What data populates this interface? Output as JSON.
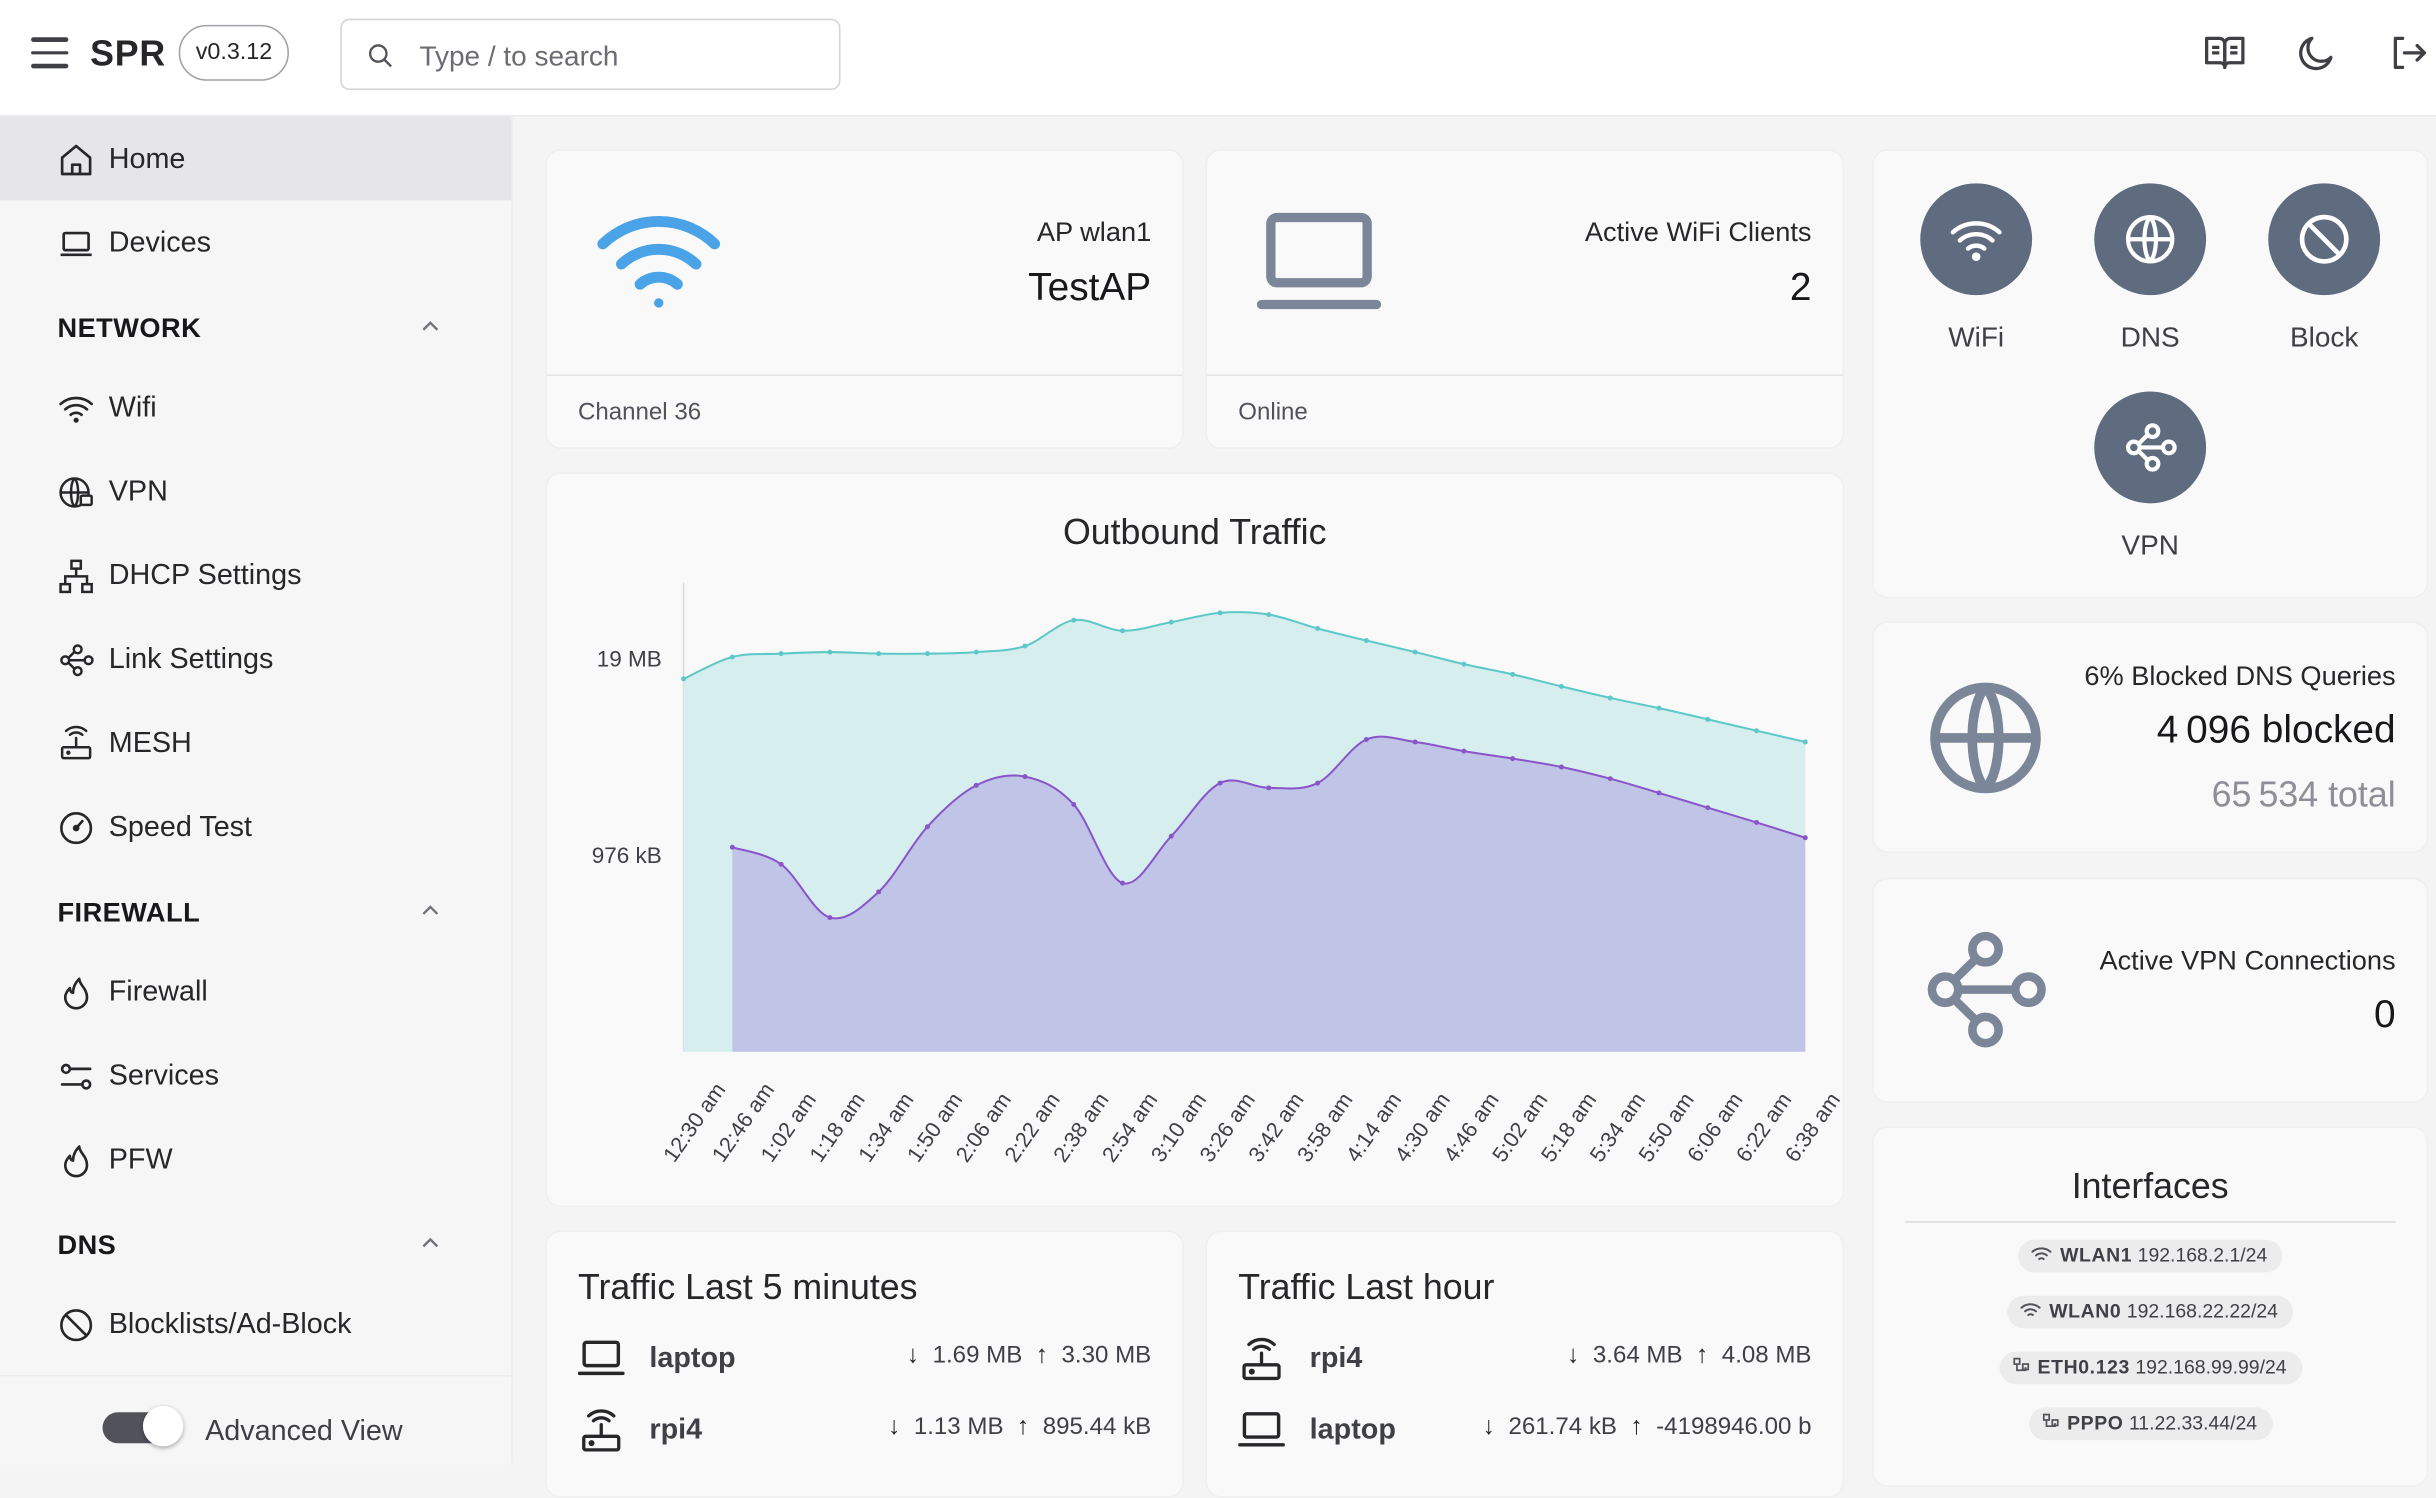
{
  "header": {
    "app_name": "SPR",
    "version": "v0.3.12",
    "search_placeholder": "Type / to search"
  },
  "sidebar": {
    "top_items": [
      {
        "label": "Home",
        "icon": "home-icon",
        "active": true
      },
      {
        "label": "Devices",
        "icon": "laptop-icon",
        "active": false
      }
    ],
    "sections": [
      {
        "title": "NETWORK",
        "items": [
          {
            "label": "Wifi",
            "icon": "wifi-icon"
          },
          {
            "label": "VPN",
            "icon": "globe-lock-icon"
          },
          {
            "label": "DHCP Settings",
            "icon": "sitemap-icon"
          },
          {
            "label": "Link Settings",
            "icon": "link-nodes-icon"
          },
          {
            "label": "MESH",
            "icon": "router-icon"
          },
          {
            "label": "Speed Test",
            "icon": "gauge-icon"
          }
        ]
      },
      {
        "title": "FIREWALL",
        "items": [
          {
            "label": "Firewall",
            "icon": "flame-icon"
          },
          {
            "label": "Services",
            "icon": "sliders-icon"
          },
          {
            "label": "PFW",
            "icon": "flame-icon"
          }
        ]
      },
      {
        "title": "DNS",
        "items": [
          {
            "label": "Blocklists/Ad-Block",
            "icon": "ban-icon"
          }
        ]
      }
    ],
    "advanced_view_label": "Advanced View",
    "advanced_view_on": true
  },
  "cards": {
    "ap": {
      "label": "AP wlan1",
      "value": "TestAP",
      "footer": "Channel 36"
    },
    "clients": {
      "label": "Active WiFi Clients",
      "value": "2",
      "footer": "Online"
    },
    "dns_blocked": {
      "label": "6% Blocked DNS Queries",
      "blocked": "4 096 blocked",
      "total": "65 534 total"
    },
    "vpn": {
      "label": "Active VPN Connections",
      "value": "0"
    }
  },
  "quick_links": [
    {
      "label": "WiFi",
      "icon": "wifi-icon"
    },
    {
      "label": "DNS",
      "icon": "globe-icon"
    },
    {
      "label": "Block",
      "icon": "ban-icon"
    },
    {
      "label": "VPN",
      "icon": "link-nodes-icon"
    }
  ],
  "chart_data": {
    "type": "area",
    "title": "Outbound Traffic",
    "xlabel": "",
    "ylabel": "",
    "x": [
      "12:30 am",
      "12:46 am",
      "1:02 am",
      "1:18 am",
      "1:34 am",
      "1:50 am",
      "2:06 am",
      "2:22 am",
      "2:38 am",
      "2:54 am",
      "3:10 am",
      "3:26 am",
      "3:42 am",
      "3:58 am",
      "4:14 am",
      "4:30 am",
      "4:46 am",
      "5:02 am",
      "5:18 am",
      "5:34 am",
      "5:50 am",
      "6:06 am",
      "6:22 am",
      "6:38 am"
    ],
    "y_ticks": [
      "19 MB",
      "976 kB"
    ],
    "scale": "log",
    "ylim_mb": [
      0.05,
      60
    ],
    "series": [
      {
        "color": "#5cc8c8",
        "values_mb": [
          14,
          19.5,
          20.5,
          21,
          20.5,
          20.5,
          21,
          23,
          34,
          29,
          33,
          38,
          37,
          30,
          25,
          21,
          17.5,
          15,
          12.5,
          10.5,
          9,
          7.6,
          6.4,
          5.4
        ]
      },
      {
        "color": "#8a55c8",
        "values_mb": [
          null,
          1.1,
          0.85,
          0.38,
          0.56,
          1.5,
          2.8,
          3.2,
          2.1,
          0.64,
          1.3,
          2.9,
          2.7,
          2.9,
          5.6,
          5.4,
          4.7,
          4.2,
          3.7,
          3.1,
          2.5,
          2.0,
          1.6,
          1.27
        ]
      }
    ]
  },
  "traffic_5min": {
    "title": "Traffic Last 5 minutes",
    "rows": [
      {
        "icon": "laptop-icon",
        "name": "laptop",
        "down": "1.69 MB",
        "up": "3.30 MB"
      },
      {
        "icon": "router-icon",
        "name": "rpi4",
        "down": "1.13 MB",
        "up": "895.44 kB"
      }
    ]
  },
  "traffic_hour": {
    "title": "Traffic Last hour",
    "rows": [
      {
        "icon": "router-icon",
        "name": "rpi4",
        "down": "3.64 MB",
        "up": "4.08 MB"
      },
      {
        "icon": "laptop-icon",
        "name": "laptop",
        "down": "261.74 kB",
        "up": "-4198946.00 b"
      }
    ]
  },
  "interfaces": {
    "title": "Interfaces",
    "items": [
      {
        "icon": "wifi-icon",
        "name": "WLAN1",
        "ip": "192.168.2.1/24"
      },
      {
        "icon": "wifi-icon",
        "name": "WLAN0",
        "ip": "192.168.22.22/24"
      },
      {
        "icon": "ethernet-icon",
        "name": "ETH0.123",
        "ip": "192.168.99.99/24"
      },
      {
        "icon": "ethernet-icon",
        "name": "PPPO",
        "ip": "11.22.33.44/24"
      }
    ]
  },
  "colors": {
    "accent_wifi": "#4aa3e6",
    "quick_button": "#5f6b7e",
    "card_icon": "#7b8699",
    "area1": "#d6eeee",
    "area2": "#c0c4e6"
  }
}
